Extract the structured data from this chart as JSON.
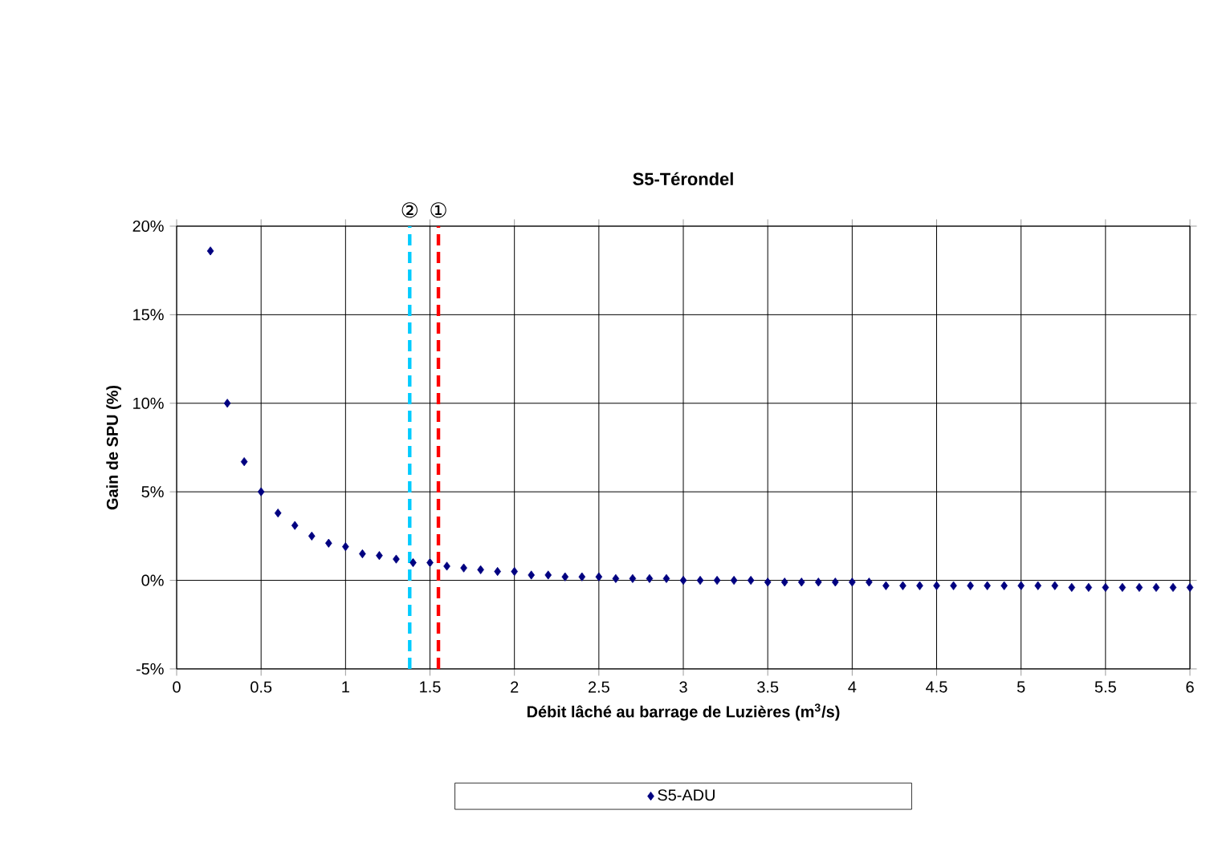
{
  "chart_data": {
    "type": "scatter",
    "title": "S5-Térondel",
    "xlabel": "Débit lâché au barrage de Luzières (m$^{3}$/s)",
    "ylabel": "Gain de SPU (%)",
    "series": [
      {
        "name": "S5-ADU",
        "color": "#000080",
        "x": [
          0.2,
          0.3,
          0.4,
          0.5,
          0.6,
          0.7,
          0.8,
          0.9,
          1.0,
          1.1,
          1.2,
          1.3,
          1.4,
          1.5,
          1.6,
          1.7,
          1.8,
          1.9,
          2.0,
          2.1,
          2.2,
          2.3,
          2.4,
          2.5,
          2.6,
          2.7,
          2.8,
          2.9,
          3.0,
          3.1,
          3.2,
          3.3,
          3.4,
          3.5,
          3.6,
          3.7,
          3.8,
          3.9,
          4.0,
          4.1,
          4.2,
          4.3,
          4.4,
          4.5,
          4.6,
          4.7,
          4.8,
          4.9,
          5.0,
          5.1,
          5.2,
          5.3,
          5.4,
          5.5,
          5.6,
          5.7,
          5.8,
          5.9,
          6.0
        ],
        "values": [
          18.6,
          10.0,
          6.7,
          5.0,
          3.8,
          3.1,
          2.5,
          2.1,
          1.9,
          1.5,
          1.4,
          1.2,
          1.0,
          1.0,
          0.8,
          0.7,
          0.6,
          0.5,
          0.5,
          0.3,
          0.3,
          0.2,
          0.2,
          0.2,
          0.1,
          0.1,
          0.1,
          0.1,
          0.0,
          0.0,
          0.0,
          0.0,
          0.0,
          -0.1,
          -0.1,
          -0.1,
          -0.1,
          -0.1,
          -0.1,
          -0.1,
          -0.3,
          -0.3,
          -0.3,
          -0.3,
          -0.3,
          -0.3,
          -0.3,
          -0.3,
          -0.3,
          -0.3,
          -0.3,
          -0.4,
          -0.4,
          -0.4,
          -0.4,
          -0.4,
          -0.4,
          -0.4,
          -0.4
        ]
      }
    ],
    "xlim": [
      0,
      6
    ],
    "xticks": [
      0,
      0.5,
      1,
      1.5,
      2,
      2.5,
      3,
      3.5,
      4,
      4.5,
      5,
      5.5,
      6
    ],
    "ylim": [
      -5,
      20
    ],
    "yticks": [
      {
        "value": -5,
        "label": "-5%"
      },
      {
        "value": 0,
        "label": "0%"
      },
      {
        "value": 5,
        "label": "5%"
      },
      {
        "value": 10,
        "label": "10%"
      },
      {
        "value": 15,
        "label": "15%"
      },
      {
        "value": 20,
        "label": "20%"
      }
    ],
    "ref_lines": [
      {
        "axis": "x",
        "value": 1.55,
        "label": "①",
        "color": "#ff0000",
        "line_style": "dashed"
      },
      {
        "axis": "x",
        "value": 1.38,
        "label": "②",
        "color": "#00ccff",
        "line_style": "dashed"
      }
    ],
    "grid": true,
    "legend": "bottom",
    "marker": "diamond"
  }
}
